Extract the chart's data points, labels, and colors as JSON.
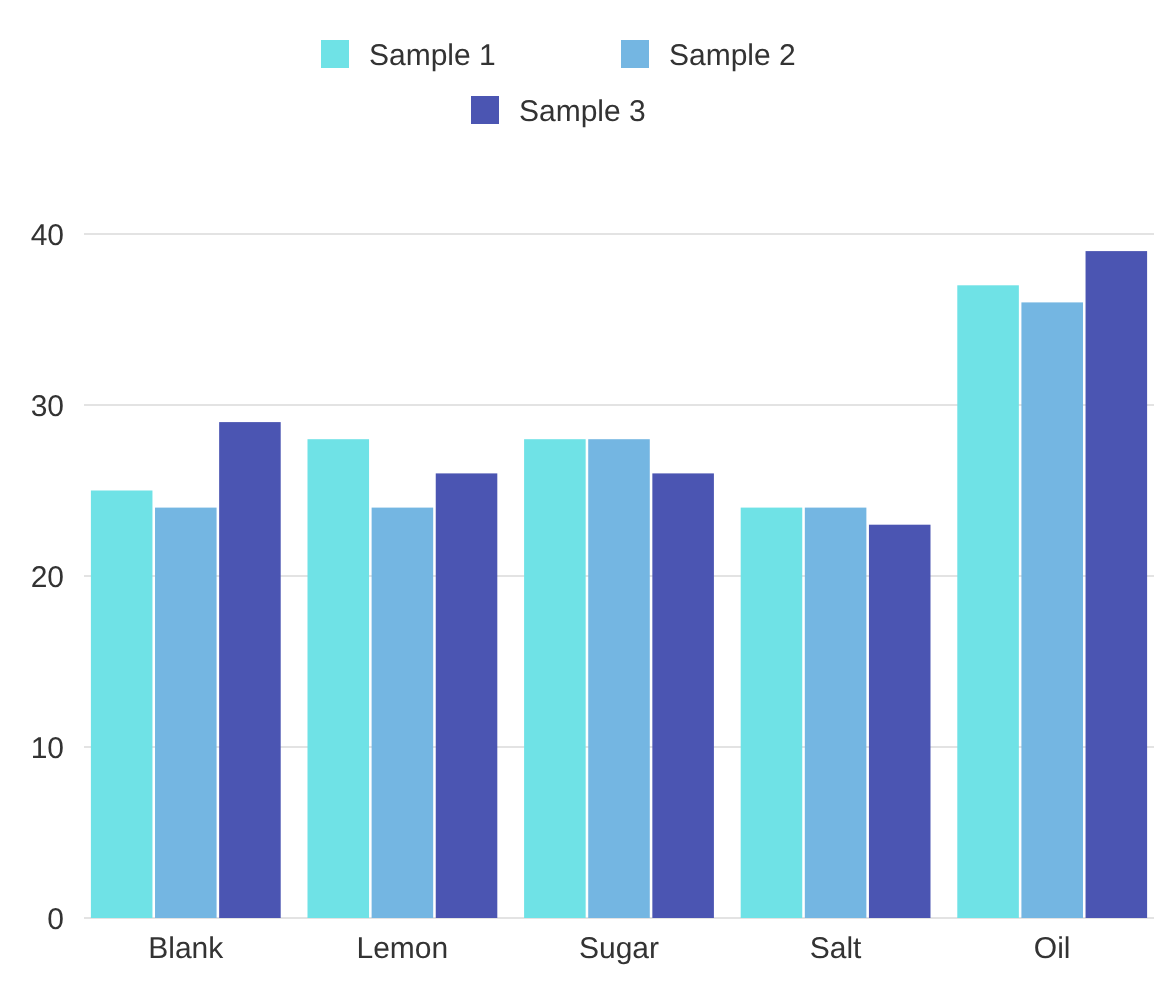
{
  "chart_data": {
    "type": "bar",
    "categories": [
      "Blank",
      "Lemon",
      "Sugar",
      "Salt",
      "Oil"
    ],
    "series": [
      {
        "name": "Sample 1",
        "color": "#6fe2e6",
        "values": [
          25,
          28,
          28,
          24,
          37
        ]
      },
      {
        "name": "Sample 2",
        "color": "#74b6e2",
        "values": [
          24,
          24,
          28,
          24,
          36
        ]
      },
      {
        "name": "Sample 3",
        "color": "#4b55b2",
        "values": [
          29,
          26,
          26,
          23,
          39
        ]
      }
    ],
    "ylim": [
      0,
      40
    ],
    "yticks": [
      0,
      10,
      20,
      30,
      40
    ],
    "grid": "y",
    "legend": "top"
  }
}
